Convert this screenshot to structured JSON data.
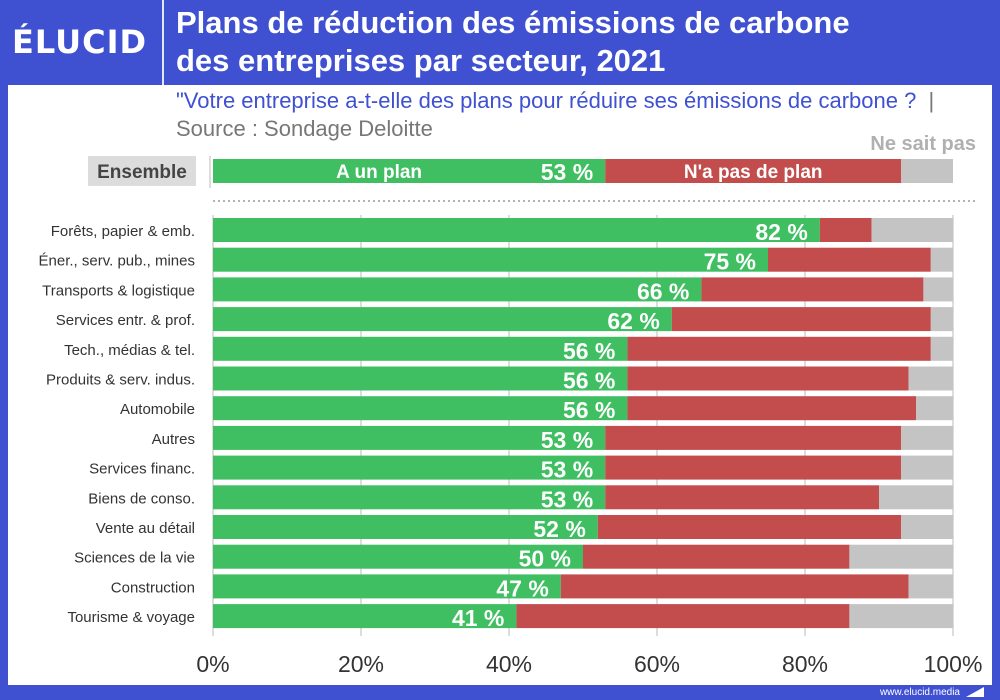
{
  "header": {
    "logo": "ÉLUCID",
    "title_line1": "Plans de réduction des émissions de carbone",
    "title_line2": "des entreprises par secteur, 2021"
  },
  "subtitle": {
    "question": "\"Votre entreprise a-t-elle des plans pour réduire ses émissions de carbone ?",
    "separator": "|",
    "source": "Source : Sondage Deloitte"
  },
  "footer": {
    "url": "www.elucid.media"
  },
  "colors": {
    "plan": "#3fbf62",
    "no_plan": "#c34c4c",
    "unknown": "#c4c4c4",
    "brand": "#3f51d0"
  },
  "chart_data": {
    "type": "bar",
    "orientation": "horizontal-stacked-100",
    "legend": {
      "plan": "A un plan",
      "no_plan": "N'a pas de plan",
      "unknown": "Ne sait pas"
    },
    "overall": {
      "label": "Ensemble",
      "plan": 53,
      "no_plan": 40,
      "unknown": 7
    },
    "categories": [
      "Forêts, papier & emb.",
      "Éner., serv. pub., mines",
      "Transports & logistique",
      "Services entr. & prof.",
      "Tech., médias & tel.",
      "Produits & serv. indus.",
      "Automobile",
      "Autres",
      "Services financ.",
      "Biens de conso.",
      "Vente au détail",
      "Sciences de la vie",
      "Construction",
      "Tourisme & voyage"
    ],
    "series": [
      {
        "name": "A un plan",
        "values": [
          82,
          75,
          66,
          62,
          56,
          56,
          56,
          53,
          53,
          53,
          52,
          50,
          47,
          41
        ]
      },
      {
        "name": "N'a pas de plan",
        "values": [
          7,
          22,
          30,
          35,
          41,
          38,
          39,
          40,
          40,
          37,
          41,
          36,
          47,
          45
        ]
      },
      {
        "name": "Ne sait pas",
        "values": [
          11,
          3,
          4,
          3,
          3,
          6,
          5,
          7,
          7,
          10,
          7,
          14,
          6,
          14
        ]
      }
    ],
    "value_suffix": " %",
    "xlim": [
      0,
      100
    ],
    "xticks": [
      "0%",
      "20%",
      "40%",
      "60%",
      "80%",
      "100%"
    ],
    "grid": true
  }
}
